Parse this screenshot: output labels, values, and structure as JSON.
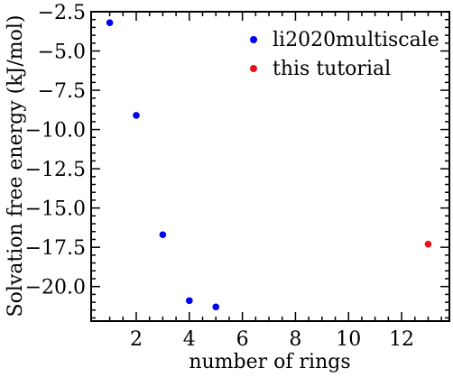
{
  "chart_data": {
    "type": "scatter",
    "xlabel": "number of rings",
    "ylabel": "Solvation free energy (kJ/mol)",
    "xlim": [
      0.3,
      13.8
    ],
    "ylim": [
      -22.2,
      -2.5
    ],
    "x_ticks": [
      2,
      4,
      6,
      8,
      10,
      12
    ],
    "y_ticks": [
      -2.5,
      -5.0,
      -7.5,
      -10.0,
      -12.5,
      -15.0,
      -17.5,
      -20.0
    ],
    "x_tick_labels": [
      "2",
      "4",
      "6",
      "8",
      "10",
      "12"
    ],
    "y_tick_labels": [
      "−2.5",
      "−5.0",
      "−7.5",
      "−10.0",
      "−12.5",
      "−15.0",
      "−17.5",
      "−20.0"
    ],
    "grid": false,
    "legend_position": "top-right",
    "series": [
      {
        "name": "li2020multiscale",
        "color": "#0000ee",
        "x": [
          1,
          2,
          3,
          4,
          5
        ],
        "y": [
          -3.2,
          -9.1,
          -16.7,
          -20.9,
          -21.3
        ]
      },
      {
        "name": "this tutorial",
        "color": "#ee1111",
        "x": [
          13
        ],
        "y": [
          -17.3
        ]
      }
    ]
  }
}
